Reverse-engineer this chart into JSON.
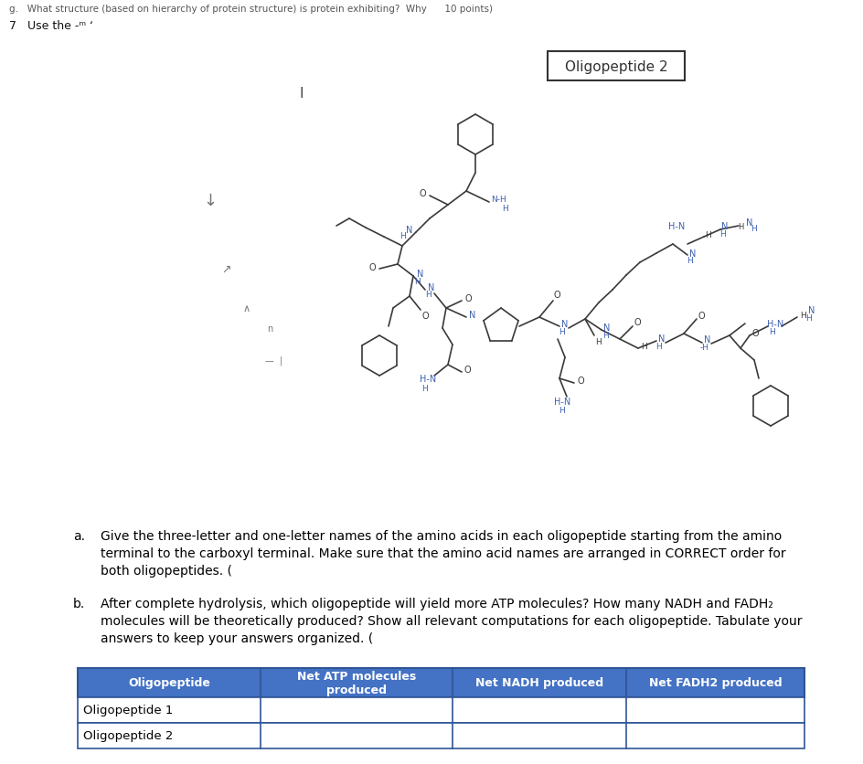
{
  "bg_color": "#ffffff",
  "header_line1": "g.   What structure (based on hierarchy of protein structure) is protein exhibiting?  Why      10 points)",
  "header_line2": "7   Use the -ᵐ ‘",
  "label_oligopeptide2": "Oligopeptide 2",
  "label_vertical_bar": "I",
  "part_a_label": "a.",
  "part_a_text": "Give the three-letter and one-letter names of the amino acids in each oligopeptide starting from the amino\nterminal to the carboxyl terminal. Make sure that the amino acid names are arranged in CORRECT order for\nboth oligopeptides. (",
  "part_b_label": "b.",
  "part_b_text": "After complete hydrolysis, which oligopeptide will yield more ATP molecules? How many NADH and FADH₂\nmolecules will be theoretically produced? Show all relevant computations for each oligopeptide. Tabulate your\nanswers to keep your answers organized. (",
  "table_header_bg": "#4472C4",
  "table_header_text_color": "#ffffff",
  "table_col_headers": [
    "Oligopeptide",
    "Net ATP molecules\nproduced",
    "Net NADH produced",
    "Net FADH2 produced"
  ],
  "table_rows": [
    [
      "Oligopeptide 1",
      "",
      "",
      ""
    ],
    [
      "Oligopeptide 2",
      "",
      "",
      ""
    ]
  ],
  "table_border_color": "#2F5597",
  "struct_color_black": "#3a3a3a",
  "struct_color_blue": "#4060b0",
  "struct_lw": 1.2
}
